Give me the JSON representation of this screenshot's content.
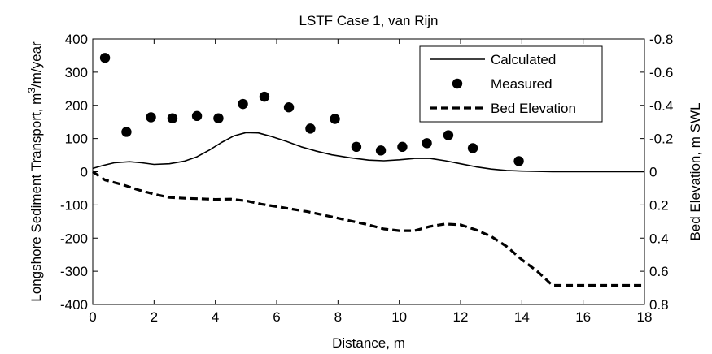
{
  "chart_data": {
    "type": "line",
    "title": "LSTF Case 1, van Rijn",
    "xlabel": "Distance, m",
    "ylabel_left": {
      "main": "Longshore Sediment Transport, m",
      "sup": "3",
      "tail": "/m/year"
    },
    "ylabel_right": "Bed Elevation, m SWL",
    "xlim": [
      0,
      18
    ],
    "ylim_left": [
      -400,
      400
    ],
    "ylim_right": [
      0.8,
      -0.8
    ],
    "right_axis_reversed": true,
    "grid": false,
    "legend_position": "top-right",
    "x_ticks": [
      {
        "value": 0,
        "label": "0"
      },
      {
        "value": 2,
        "label": "2"
      },
      {
        "value": 4,
        "label": "4"
      },
      {
        "value": 6,
        "label": "6"
      },
      {
        "value": 8,
        "label": "8"
      },
      {
        "value": 10,
        "label": "10"
      },
      {
        "value": 12,
        "label": "12"
      },
      {
        "value": 14,
        "label": "14"
      },
      {
        "value": 16,
        "label": "16"
      },
      {
        "value": 18,
        "label": "18"
      }
    ],
    "y_ticks_left": [
      {
        "value": 400,
        "label": "400"
      },
      {
        "value": 300,
        "label": "300"
      },
      {
        "value": 200,
        "label": "200"
      },
      {
        "value": 100,
        "label": "100"
      },
      {
        "value": 0,
        "label": "0"
      },
      {
        "value": -100,
        "label": "-100"
      },
      {
        "value": -200,
        "label": "-200"
      },
      {
        "value": -300,
        "label": "-300"
      },
      {
        "value": -400,
        "label": "-400"
      }
    ],
    "y_ticks_right": [
      {
        "value": -0.8,
        "label": "-0.8"
      },
      {
        "value": -0.6,
        "label": "-0.6"
      },
      {
        "value": -0.4,
        "label": "-0.4"
      },
      {
        "value": -0.2,
        "label": "-0.2"
      },
      {
        "value": 0,
        "label": "0"
      },
      {
        "value": 0.2,
        "label": "0.2"
      },
      {
        "value": 0.4,
        "label": "0.4"
      },
      {
        "value": 0.6,
        "label": "0.6"
      },
      {
        "value": 0.8,
        "label": "0.8"
      }
    ],
    "series": [
      {
        "name": "Calculated",
        "axis": "left",
        "style": "solid-line",
        "x": [
          0,
          0.3,
          0.7,
          1.2,
          1.6,
          2.0,
          2.5,
          3.0,
          3.4,
          3.8,
          4.2,
          4.6,
          5.0,
          5.4,
          5.8,
          6.3,
          6.8,
          7.3,
          7.8,
          8.4,
          9.0,
          9.5,
          10.0,
          10.5,
          11.0,
          11.5,
          12.0,
          12.5,
          13.0,
          13.5,
          14.0,
          14.5,
          15.0,
          18.0
        ],
        "y": [
          10,
          18,
          27,
          30,
          27,
          22,
          24,
          32,
          45,
          65,
          88,
          108,
          118,
          117,
          107,
          92,
          75,
          62,
          51,
          42,
          35,
          33,
          36,
          40,
          40,
          33,
          24,
          15,
          8,
          4,
          2,
          1,
          0,
          0
        ]
      },
      {
        "name": "Measured",
        "axis": "left",
        "style": "marker",
        "x": [
          0.4,
          1.1,
          1.9,
          2.6,
          3.4,
          4.1,
          4.9,
          5.6,
          6.4,
          7.1,
          7.9,
          8.6,
          9.4,
          10.1,
          10.9,
          11.6,
          12.4,
          13.9
        ],
        "y": [
          343,
          120,
          164,
          161,
          168,
          161,
          204,
          226,
          194,
          130,
          159,
          75,
          64,
          75,
          86,
          110,
          71,
          32
        ]
      },
      {
        "name": "Bed Elevation",
        "axis": "right",
        "style": "dashed-line",
        "x": [
          0,
          0.4,
          1.0,
          1.5,
          2.0,
          2.5,
          3.0,
          3.5,
          4.0,
          4.5,
          5.0,
          5.5,
          6.0,
          6.5,
          7.0,
          7.5,
          8.0,
          8.5,
          9.0,
          9.5,
          10.0,
          10.5,
          11.0,
          11.5,
          12.0,
          12.5,
          13.0,
          13.5,
          14.0,
          14.5,
          15.0,
          16.0,
          17.0,
          18.0
        ],
        "y": [
          0.0,
          0.05,
          0.08,
          0.11,
          0.135,
          0.155,
          0.16,
          0.163,
          0.167,
          0.165,
          0.175,
          0.195,
          0.21,
          0.225,
          0.24,
          0.26,
          0.28,
          0.3,
          0.32,
          0.345,
          0.355,
          0.355,
          0.33,
          0.315,
          0.32,
          0.35,
          0.39,
          0.45,
          0.53,
          0.6,
          0.685,
          0.685,
          0.685,
          0.685
        ]
      }
    ],
    "legend": [
      {
        "label": "Calculated",
        "style": "solid-line"
      },
      {
        "label": "Measured",
        "style": "marker"
      },
      {
        "label": "Bed Elevation",
        "style": "dashed-line"
      }
    ]
  }
}
